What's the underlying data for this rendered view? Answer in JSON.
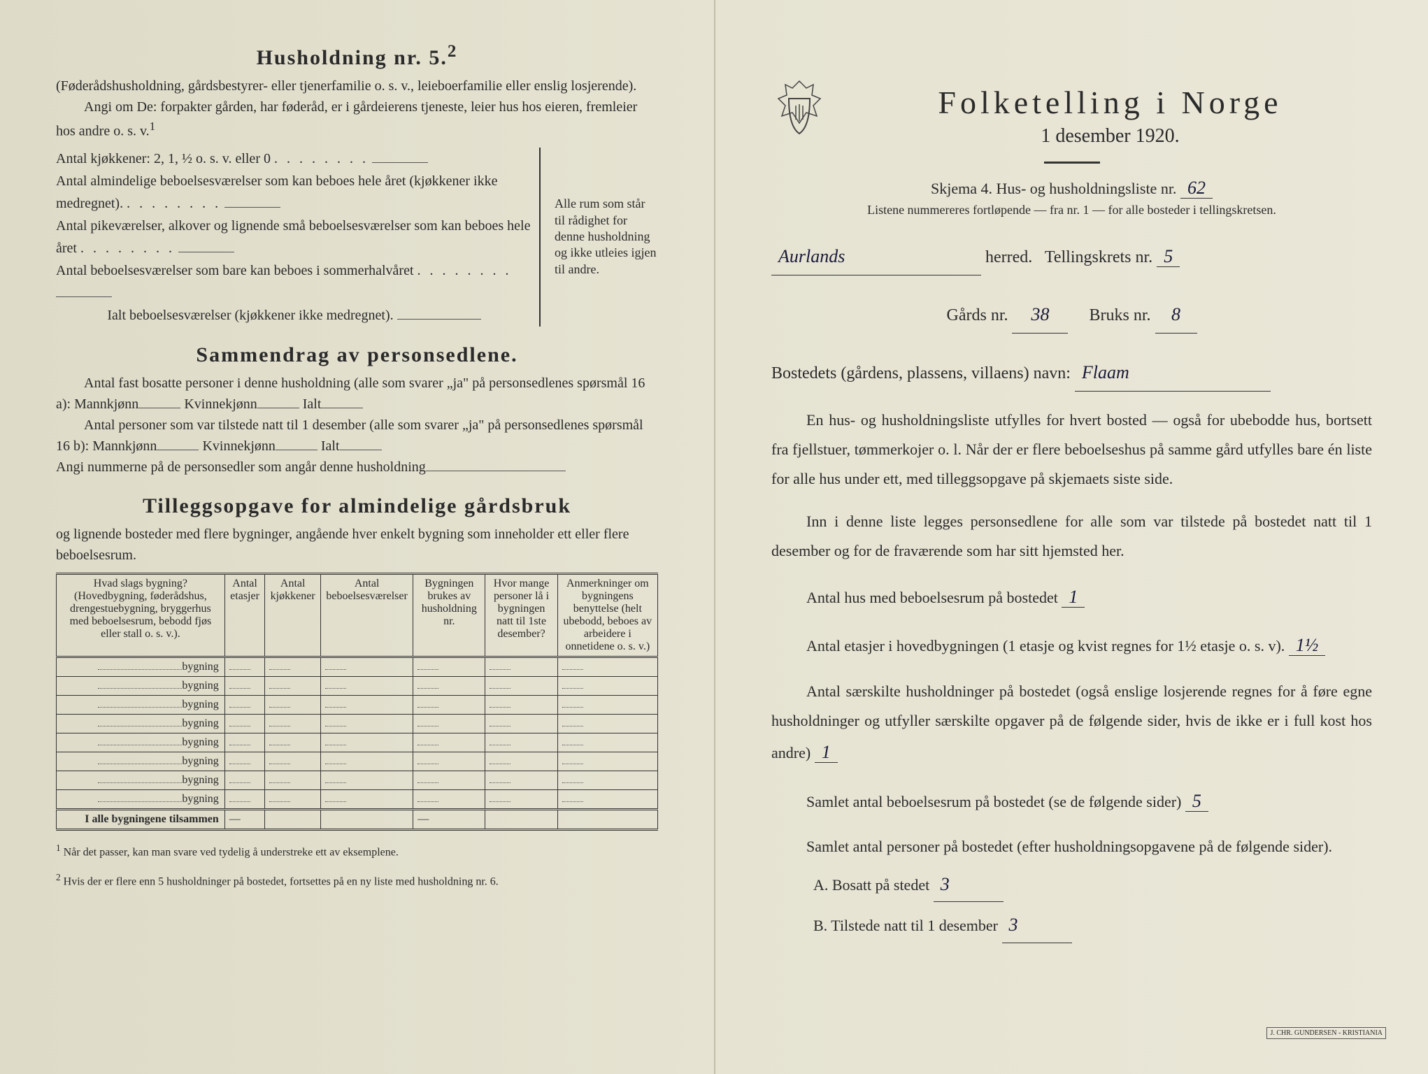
{
  "left": {
    "heading": "Husholdning nr. 5.",
    "heading_sup": "2",
    "desc1": "(Føderådshusholdning, gårdsbestyrer- eller tjenerfamilie o. s. v., leieboerfamilie eller enslig losjerende).",
    "desc2": "Angi om De: forpakter gården, har føderåd, er i gårdeierens tjeneste, leier hus hos eieren, fremleier hos andre o. s. v.",
    "desc2_sup": "1",
    "kitchen_line": "Antal kjøkkener: 2, 1, ½ o. s. v. eller 0",
    "rooms1": "Antal almindelige beboelsesværelser som kan beboes hele året (kjøkkener ikke medregnet).",
    "rooms2": "Antal pikeværelser, alkover og lignende små beboelsesværelser som kan beboes hele året",
    "rooms3": "Antal beboelsesværelser som bare kan beboes i sommerhalvåret",
    "rooms_total": "Ialt beboelsesværelser (kjøkkener ikke medregnet).",
    "brace_note": "Alle rum som står til rådighet for denne husholdning og ikke utleies igjen til andre.",
    "sammendrag_heading": "Sammendrag av personsedlene.",
    "sam1": "Antal fast bosatte personer i denne husholdning (alle som svarer „ja\" på personsedlenes spørsmål 16 a): Mannkjønn",
    "sam1_k": "Kvinnekjønn",
    "sam1_i": "Ialt",
    "sam2": "Antal personer som var tilstede natt til 1 desember (alle som svarer „ja\" på personsedlenes spørsmål 16 b): Mannkjønn",
    "sam2_k": "Kvinnekjønn",
    "sam2_i": "Ialt",
    "sam3": "Angi nummerne på de personsedler som angår denne husholdning",
    "tillegg_heading": "Tilleggsopgave for almindelige gårdsbruk",
    "tillegg_sub": "og lignende bosteder med flere bygninger, angående hver enkelt bygning som inneholder ett eller flere beboelsesrum.",
    "table": {
      "cols": [
        "Hvad slags bygning?\n(Hovedbygning, føderådshus, drengestuebygning, bryggerhus med beboelsesrum, bebodd fjøs eller stall o. s. v.).",
        "Antal etasjer",
        "Antal kjøkkener",
        "Antal beboelsesværelser",
        "Bygningen brukes av husholdning nr.",
        "Hvor mange personer lå i bygningen natt til 1ste desember?",
        "Anmerkninger om bygningens benyttelse (helt ubebodd, beboes av arbeidere i onnetidene o. s. v.)"
      ],
      "rowlabel": "bygning",
      "rowcount": 8,
      "totalrow": "I alle bygningene tilsammen"
    },
    "foot1": "Når det passer, kan man svare ved tydelig å understreke ett av eksemplene.",
    "foot2": "Hvis der er flere enn 5 husholdninger på bostedet, fortsettes på en ny liste med husholdning nr. 6."
  },
  "right": {
    "title": "Folketelling i Norge",
    "date": "1 desember 1920.",
    "skjema": "Skjema 4.  Hus- og husholdningsliste nr.",
    "skjema_val": "62",
    "listnote": "Listene nummereres fortløpende — fra nr. 1 — for alle bosteder i tellingskretsen.",
    "herred_label": "herred.",
    "herred_val": "Aurlands",
    "tkrets_label": "Tellingskrets nr.",
    "tkrets_val": "5",
    "gard_label": "Gårds nr.",
    "gard_val": "38",
    "bruks_label": "Bruks nr.",
    "bruks_val": "8",
    "bosted_label": "Bostedets (gårdens, plassens, villaens) navn:",
    "bosted_val": "Flaam",
    "para1": "En hus- og husholdningsliste utfylles for hvert bosted — også for ubebodde hus, bortsett fra fjellstuer, tømmerkojer o. l. Når der er flere beboelseshus på samme gård utfylles bare én liste for alle hus under ett, med tilleggsopgave på skjemaets siste side.",
    "para2": "Inn i denne liste legges personsedlene for alle som var tilstede på bostedet natt til 1 desember og for de fraværende som har sitt hjemsted her.",
    "q1": "Antal hus med beboelsesrum på bostedet",
    "q1_val": "1",
    "q2a": "Antal etasjer i hovedbygningen (1 etasje og kvist regnes for 1½ etasje o. s. v).",
    "q2_val": "1½",
    "q3": "Antal særskilte husholdninger på bostedet (også enslige losjerende regnes for å føre egne husholdninger og utfyller særskilte opgaver på de følgende sider, hvis de ikke er i full kost hos andre)",
    "q3_val": "1",
    "q4": "Samlet antal beboelsesrum på bostedet (se de følgende sider)",
    "q4_val": "5",
    "q5": "Samlet antal personer på bostedet (efter husholdningsopgavene på de følgende sider).",
    "qa": "A.  Bosatt på stedet",
    "qa_val": "3",
    "qb": "B.  Tilstede natt til 1 desember",
    "qb_val": "3",
    "printer": "J. CHR. GUNDERSEN - KRISTIANIA"
  }
}
